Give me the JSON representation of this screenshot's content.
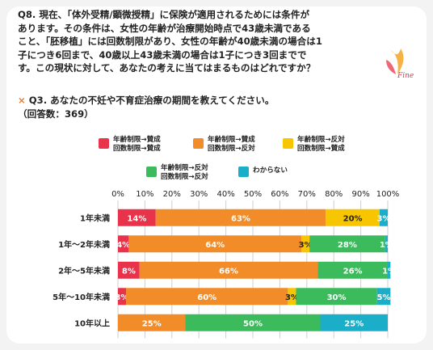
{
  "question": {
    "lines": [
      "Q8. 現在、「体外受精/顕微授精」に保険が適用されるためには条件が",
      "あります。その条件は、女性の年齢が治療開始時点で43歳未満である",
      "こと、「胚移植」には回数制限があり、女性の年齢が40歳未満の場合は1",
      "子につき6回まで、40歳以上43歳未満の場合は1子につき3回までで",
      "す。この現状に対して、あなたの考えに当てはまるものはどれですか？"
    ],
    "cross_mark": "×",
    "cross_text": "Q3. あなたの不妊や不育症治療の期間を教えてください。",
    "count": "（回答数：369）"
  },
  "logo_text": "Fine",
  "colors": {
    "red": "#e8334a",
    "orange": "#f28c28",
    "yellow": "#f7c600",
    "green": "#3cbb5c",
    "teal": "#1aaec8"
  },
  "chart_data": {
    "type": "bar",
    "orientation": "horizontal",
    "stacked": true,
    "categories": [
      "1年未満",
      "1年〜2年未満",
      "2年〜5年未満",
      "5年〜10年未満",
      "10年以上"
    ],
    "series": [
      {
        "name": "年齢制限→賛成\n回数制限→賛成",
        "color": "#e8334a",
        "values": [
          14,
          4,
          8,
          3,
          0
        ]
      },
      {
        "name": "年齢制限→賛成\n回数制限→反対",
        "color": "#f28c28",
        "values": [
          63,
          64,
          66,
          60,
          25
        ]
      },
      {
        "name": "年齢制限→反対\n回数制限→賛成",
        "color": "#f7c600",
        "values": [
          20,
          3,
          0,
          3,
          0
        ]
      },
      {
        "name": "年齢制限→反対\n回数制限→反対",
        "color": "#3cbb5c",
        "values": [
          0,
          28,
          26,
          30,
          50
        ]
      },
      {
        "name": "わからない",
        "color": "#1aaec8",
        "values": [
          3,
          1,
          1,
          5,
          25
        ]
      }
    ],
    "labels": [
      [
        "14%",
        "63%",
        "20%",
        "",
        "3%"
      ],
      [
        "4%",
        "64%",
        "3%",
        "28%",
        "1%"
      ],
      [
        "8%",
        "66%",
        "",
        "26%",
        "1%"
      ],
      [
        "3%",
        "60%",
        "3%",
        "30%",
        "5%"
      ],
      [
        "",
        "25%",
        "",
        "50%",
        "25%"
      ]
    ],
    "x_ticks": [
      "0%",
      "10%",
      "20%",
      "30%",
      "40%",
      "50%",
      "60%",
      "70%",
      "80%",
      "90%",
      "100%"
    ],
    "xlim": [
      0,
      100
    ],
    "grid": true,
    "legend_position": "top"
  }
}
